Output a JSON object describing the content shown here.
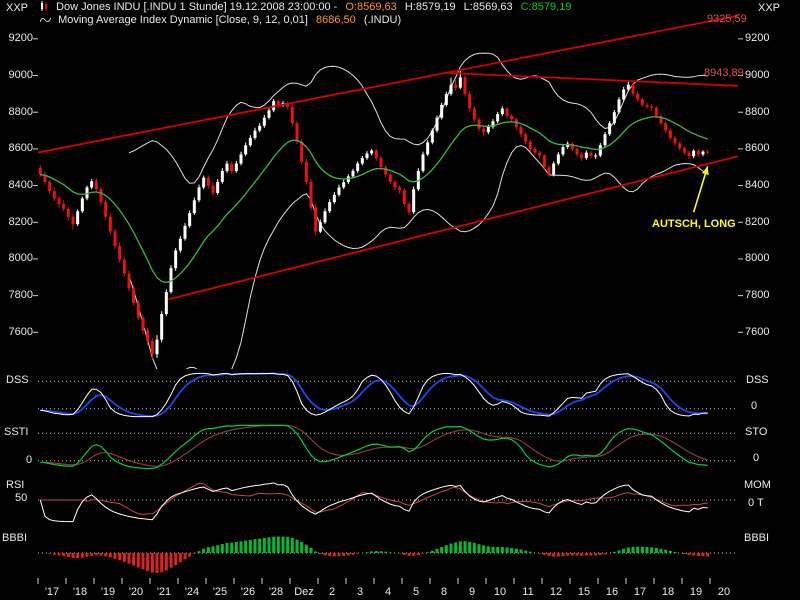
{
  "header": {
    "xxp_left": "XXP",
    "xxp_right": "XXP",
    "title": {
      "instrument": "Dow Jones INDU [.INDU  1 Stunde] 19.12.2008 23:00:00 -",
      "o": "O:8569,63",
      "h": "H:8579,19",
      "l": "L:8569,63",
      "c": "C:8579,19"
    },
    "indicator_line": {
      "name": "Moving Average Index Dynamic [Close, 9, 12, 0,01]",
      "value": "8686,50",
      "suffix": "(.INDU)"
    }
  },
  "colors": {
    "up": "#ffffff",
    "down": "#ee1111",
    "ma": "#3cb83c",
    "band": "#dddddd",
    "trend": "#d40000",
    "annotation": "#ffff00",
    "dss_fast": "#ffffff",
    "dss_slow": "#2244ee",
    "ssti_fast": "#00cc44",
    "ssti_slow": "#8b3a3a",
    "rsi": "#ffffff",
    "mom": "#cc4444",
    "hist_pos": "#00bb33",
    "hist_neg": "#dd2222",
    "axis": "#cfcfcf"
  },
  "chart_data": {
    "type": "candlestick",
    "title": "Dow Jones INDU (.INDU) 1 Stunde",
    "interval": "1 Stunde",
    "last_bar_time": "19.12.2008 23:00:00",
    "ylim": [
      7400,
      9330
    ],
    "y_axis_ticks": [
      9200,
      9000,
      8800,
      8600,
      8400,
      8200,
      8000,
      7800,
      7600
    ],
    "bars_per_day": 6,
    "x_day_labels": [
      "'17",
      "'18",
      "'19",
      "'20",
      "'21",
      "'24",
      "'25",
      "'26",
      "'28",
      "Dez",
      "2",
      "3",
      "4",
      "5",
      "8",
      "9",
      "10",
      "11",
      "12",
      "15",
      "16",
      "17",
      "18",
      "19",
      "20"
    ],
    "candles": [
      [
        8497,
        8510,
        8450,
        8460
      ],
      [
        8460,
        8475,
        8405,
        8420
      ],
      [
        8420,
        8430,
        8355,
        8370
      ],
      [
        8370,
        8390,
        8315,
        8330
      ],
      [
        8330,
        8345,
        8280,
        8300
      ],
      [
        8300,
        8320,
        8260,
        8273
      ],
      [
        8273,
        8285,
        8210,
        8230
      ],
      [
        8230,
        8245,
        8160,
        8190
      ],
      [
        8190,
        8270,
        8180,
        8260
      ],
      [
        8260,
        8340,
        8250,
        8330
      ],
      [
        8330,
        8400,
        8320,
        8390
      ],
      [
        8390,
        8435,
        8380,
        8424
      ],
      [
        8424,
        8440,
        8365,
        8380
      ],
      [
        8380,
        8390,
        8295,
        8310
      ],
      [
        8310,
        8325,
        8215,
        8230
      ],
      [
        8230,
        8245,
        8135,
        8150
      ],
      [
        8150,
        8165,
        8055,
        8070
      ],
      [
        8070,
        8090,
        7980,
        7997
      ],
      [
        7997,
        8010,
        7905,
        7920
      ],
      [
        7920,
        7935,
        7825,
        7840
      ],
      [
        7840,
        7855,
        7745,
        7760
      ],
      [
        7760,
        7775,
        7665,
        7680
      ],
      [
        7680,
        7695,
        7590,
        7610
      ],
      [
        7610,
        7625,
        7530,
        7552
      ],
      [
        7552,
        7570,
        7449,
        7480
      ],
      [
        7480,
        7585,
        7460,
        7560
      ],
      [
        7560,
        7715,
        7545,
        7700
      ],
      [
        7700,
        7835,
        7690,
        7820
      ],
      [
        7820,
        7965,
        7810,
        7950
      ],
      [
        7950,
        8060,
        7935,
        8046
      ],
      [
        8046,
        8125,
        8035,
        8110
      ],
      [
        8110,
        8195,
        8100,
        8180
      ],
      [
        8180,
        8265,
        8170,
        8250
      ],
      [
        8250,
        8335,
        8240,
        8320
      ],
      [
        8320,
        8405,
        8310,
        8390
      ],
      [
        8390,
        8455,
        8380,
        8443
      ],
      [
        8443,
        8455,
        8385,
        8400
      ],
      [
        8400,
        8415,
        8345,
        8360
      ],
      [
        8360,
        8435,
        8350,
        8420
      ],
      [
        8420,
        8495,
        8410,
        8480
      ],
      [
        8480,
        8535,
        8470,
        8520
      ],
      [
        8520,
        8530,
        8465,
        8479
      ],
      [
        8479,
        8535,
        8470,
        8520
      ],
      [
        8520,
        8585,
        8510,
        8570
      ],
      [
        8570,
        8635,
        8560,
        8620
      ],
      [
        8620,
        8675,
        8610,
        8660
      ],
      [
        8660,
        8715,
        8650,
        8700
      ],
      [
        8700,
        8740,
        8690,
        8726
      ],
      [
        8726,
        8785,
        8715,
        8770
      ],
      [
        8770,
        8825,
        8760,
        8810
      ],
      [
        8810,
        8872,
        8800,
        8860
      ],
      [
        8860,
        8868,
        8825,
        8840
      ],
      [
        8840,
        8862,
        8830,
        8850
      ],
      [
        8850,
        8858,
        8815,
        8829
      ],
      [
        8829,
        8840,
        8725,
        8740
      ],
      [
        8740,
        8755,
        8625,
        8640
      ],
      [
        8640,
        8655,
        8515,
        8530
      ],
      [
        8530,
        8545,
        8405,
        8420
      ],
      [
        8420,
        8435,
        8265,
        8280
      ],
      [
        8280,
        8300,
        8128,
        8149
      ],
      [
        8149,
        8215,
        8140,
        8200
      ],
      [
        8200,
        8275,
        8190,
        8260
      ],
      [
        8260,
        8325,
        8250,
        8310
      ],
      [
        8310,
        8365,
        8300,
        8350
      ],
      [
        8350,
        8405,
        8340,
        8390
      ],
      [
        8390,
        8432,
        8380,
        8419
      ],
      [
        8419,
        8462,
        8408,
        8450
      ],
      [
        8450,
        8492,
        8440,
        8480
      ],
      [
        8480,
        8532,
        8470,
        8520
      ],
      [
        8520,
        8562,
        8510,
        8550
      ],
      [
        8550,
        8588,
        8540,
        8575
      ],
      [
        8575,
        8600,
        8565,
        8591
      ],
      [
        8591,
        8600,
        8535,
        8550
      ],
      [
        8550,
        8562,
        8485,
        8500
      ],
      [
        8500,
        8512,
        8445,
        8460
      ],
      [
        8460,
        8472,
        8405,
        8420
      ],
      [
        8420,
        8432,
        8375,
        8390
      ],
      [
        8390,
        8400,
        8355,
        8376
      ],
      [
        8376,
        8385,
        8285,
        8300
      ],
      [
        8300,
        8312,
        8240,
        8255
      ],
      [
        8255,
        8395,
        8245,
        8380
      ],
      [
        8380,
        8495,
        8370,
        8480
      ],
      [
        8480,
        8585,
        8470,
        8570
      ],
      [
        8570,
        8648,
        8560,
        8635
      ],
      [
        8635,
        8712,
        8625,
        8700
      ],
      [
        8700,
        8782,
        8690,
        8770
      ],
      [
        8770,
        8852,
        8760,
        8840
      ],
      [
        8840,
        8912,
        8830,
        8900
      ],
      [
        8900,
        8988,
        8890,
        8950
      ],
      [
        8950,
        8975,
        8920,
        8934
      ],
      [
        8934,
        9026,
        8925,
        8990
      ],
      [
        8990,
        9000,
        8885,
        8900
      ],
      [
        8900,
        8912,
        8805,
        8820
      ],
      [
        8820,
        8832,
        8745,
        8760
      ],
      [
        8760,
        8772,
        8695,
        8710
      ],
      [
        8710,
        8722,
        8672,
        8691
      ],
      [
        8691,
        8732,
        8680,
        8720
      ],
      [
        8720,
        8762,
        8710,
        8750
      ],
      [
        8750,
        8802,
        8740,
        8790
      ],
      [
        8790,
        8832,
        8780,
        8820
      ],
      [
        8820,
        8828,
        8768,
        8780
      ],
      [
        8780,
        8790,
        8748,
        8761
      ],
      [
        8761,
        8770,
        8705,
        8720
      ],
      [
        8720,
        8730,
        8665,
        8680
      ],
      [
        8680,
        8690,
        8625,
        8640
      ],
      [
        8640,
        8650,
        8585,
        8600
      ],
      [
        8600,
        8610,
        8565,
        8580
      ],
      [
        8580,
        8590,
        8548,
        8565
      ],
      [
        8565,
        8572,
        8485,
        8500
      ],
      [
        8500,
        8510,
        8448,
        8460
      ],
      [
        8460,
        8532,
        8450,
        8520
      ],
      [
        8520,
        8582,
        8510,
        8570
      ],
      [
        8570,
        8622,
        8560,
        8610
      ],
      [
        8610,
        8640,
        8600,
        8629
      ],
      [
        8629,
        8638,
        8588,
        8600
      ],
      [
        8600,
        8608,
        8558,
        8570
      ],
      [
        8570,
        8578,
        8535,
        8550
      ],
      [
        8550,
        8592,
        8540,
        8580
      ],
      [
        8580,
        8588,
        8548,
        8560
      ],
      [
        8560,
        8575,
        8545,
        8564
      ],
      [
        8564,
        8632,
        8555,
        8620
      ],
      [
        8620,
        8692,
        8610,
        8680
      ],
      [
        8680,
        8752,
        8670,
        8740
      ],
      [
        8740,
        8812,
        8730,
        8800
      ],
      [
        8800,
        8882,
        8790,
        8870
      ],
      [
        8870,
        8938,
        8860,
        8924
      ],
      [
        8924,
        8965,
        8915,
        8950
      ],
      [
        8950,
        8958,
        8888,
        8900
      ],
      [
        8900,
        8912,
        8858,
        8870
      ],
      [
        8870,
        8880,
        8828,
        8840
      ],
      [
        8840,
        8852,
        8818,
        8830
      ],
      [
        8830,
        8842,
        8808,
        8824
      ],
      [
        8824,
        8834,
        8768,
        8780
      ],
      [
        8780,
        8790,
        8728,
        8740
      ],
      [
        8740,
        8750,
        8688,
        8700
      ],
      [
        8700,
        8710,
        8648,
        8660
      ],
      [
        8660,
        8670,
        8618,
        8630
      ],
      [
        8630,
        8640,
        8592,
        8604
      ],
      [
        8604,
        8612,
        8565,
        8580
      ],
      [
        8580,
        8590,
        8545,
        8560
      ],
      [
        8560,
        8598,
        8550,
        8590
      ],
      [
        8590,
        8598,
        8558,
        8570
      ],
      [
        8570,
        8592,
        8560,
        8585
      ],
      [
        8585,
        8595,
        8569,
        8579
      ]
    ],
    "overlays": {
      "ma": {
        "type": "ema",
        "render_period": 18,
        "display_params": "Close, 9, 12, 0,01",
        "last_value": "8686,50"
      },
      "bands": {
        "type": "bollinger",
        "period": 20,
        "mult": 2
      }
    },
    "trendlines": [
      {
        "name": "upper-channel",
        "from_bar": 0,
        "from_price": 8580,
        "to_bar": 150,
        "to_price": 9326,
        "label": "9325,59"
      },
      {
        "name": "lower-channel",
        "from_bar": 28,
        "from_price": 7780,
        "to_bar": 150,
        "to_price": 8560,
        "label": ""
      },
      {
        "name": "resistance",
        "from_bar": 87,
        "from_price": 9015,
        "to_bar": 150,
        "to_price": 8944,
        "label": "8943,89"
      }
    ],
    "annotation": {
      "text": "AUTSCH, LONG",
      "from_bar": 140,
      "from_price": 8255,
      "to_bar": 143,
      "to_price": 8505
    },
    "panels": [
      {
        "id": "dss",
        "left_top": "DSS",
        "right_top": "DSS",
        "right_bottom": "0",
        "levels": [
          80,
          20
        ]
      },
      {
        "id": "ssti",
        "left_top": "SSTI",
        "left_bottom": "0",
        "right_top": "STO",
        "right_bottom": "0",
        "levels": [
          80,
          20
        ]
      },
      {
        "id": "rsi",
        "left_top": "RSI",
        "left_mid": "50",
        "right_top": "MOM",
        "right_mid": "0 T",
        "levels": [
          50
        ]
      },
      {
        "id": "bbbi",
        "left_top": "BBBI",
        "right_top": "BBBI",
        "levels": [
          50
        ]
      }
    ]
  }
}
